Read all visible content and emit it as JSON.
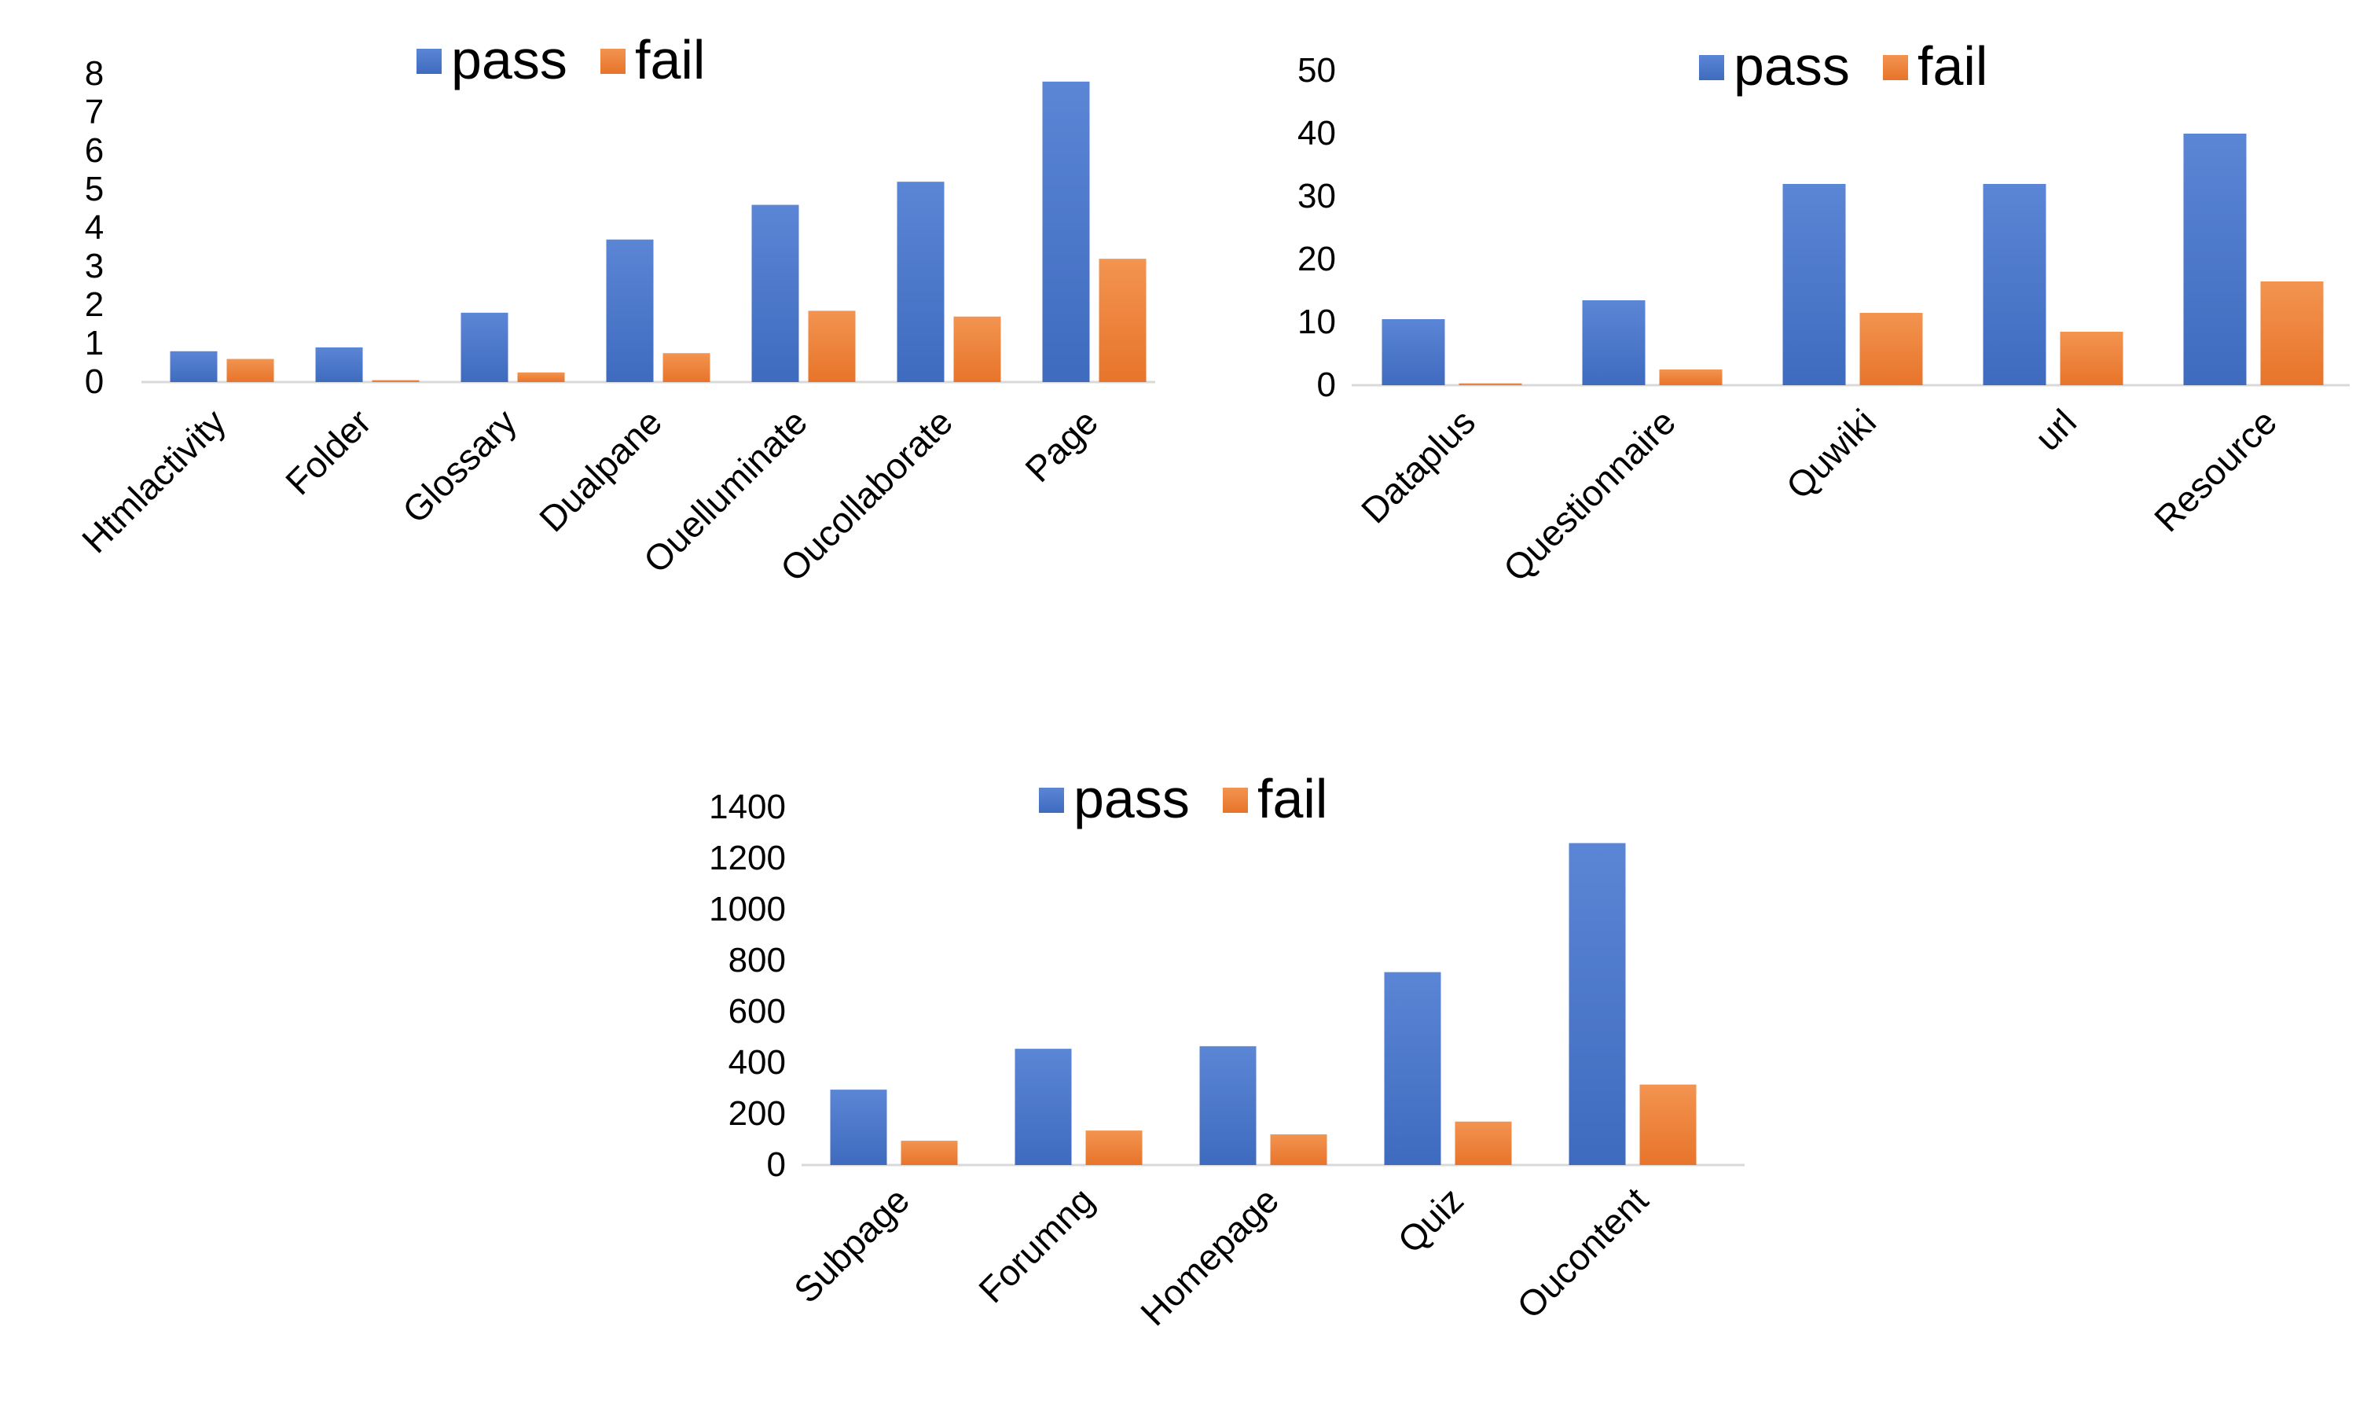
{
  "colors": {
    "pass": "#4472c4",
    "pass_light": "#5b86d6",
    "fail": "#ed7d31",
    "fail_light": "#f29450",
    "axis": "#d9d9d9"
  },
  "chart_data": [
    {
      "type": "bar",
      "legend_position": "top",
      "legend": [
        "pass",
        "fail"
      ],
      "categories": [
        "Htmlactivity",
        "Folder",
        "Glossary",
        "Dualpane",
        "Ouelluminate",
        "Oucollaborate",
        "Page"
      ],
      "series": [
        {
          "name": "pass",
          "values": [
            0.8,
            0.9,
            1.8,
            3.7,
            4.6,
            5.2,
            7.8
          ]
        },
        {
          "name": "fail",
          "values": [
            0.6,
            0.05,
            0.25,
            0.75,
            1.85,
            1.7,
            3.2
          ]
        }
      ],
      "yticks": [
        "0",
        "1",
        "2",
        "3",
        "4",
        "5",
        "6",
        "7",
        "8"
      ],
      "ylim": [
        0,
        8
      ]
    },
    {
      "type": "bar",
      "legend_position": "top",
      "legend": [
        "pass",
        "fail"
      ],
      "categories": [
        "Dataplus",
        "Questionnaire",
        "Quwiki",
        "url",
        "Resource"
      ],
      "series": [
        {
          "name": "pass",
          "values": [
            10.5,
            13.5,
            32,
            32,
            40
          ]
        },
        {
          "name": "fail",
          "values": [
            0.3,
            2.5,
            11.5,
            8.5,
            16.5
          ]
        }
      ],
      "yticks": [
        "0",
        "10",
        "20",
        "30",
        "40",
        "50"
      ],
      "ylim": [
        0,
        50
      ]
    },
    {
      "type": "bar",
      "legend_position": "top",
      "legend": [
        "pass",
        "fail"
      ],
      "categories": [
        "Subpage",
        "Forumng",
        "Homepage",
        "Quiz",
        "Oucontent"
      ],
      "series": [
        {
          "name": "pass",
          "values": [
            295,
            455,
            465,
            755,
            1260
          ]
        },
        {
          "name": "fail",
          "values": [
            95,
            135,
            120,
            170,
            315
          ]
        }
      ],
      "yticks": [
        "0",
        "200",
        "400",
        "600",
        "800",
        "1000",
        "1200",
        "1400"
      ],
      "ylim": [
        0,
        1400
      ]
    }
  ]
}
